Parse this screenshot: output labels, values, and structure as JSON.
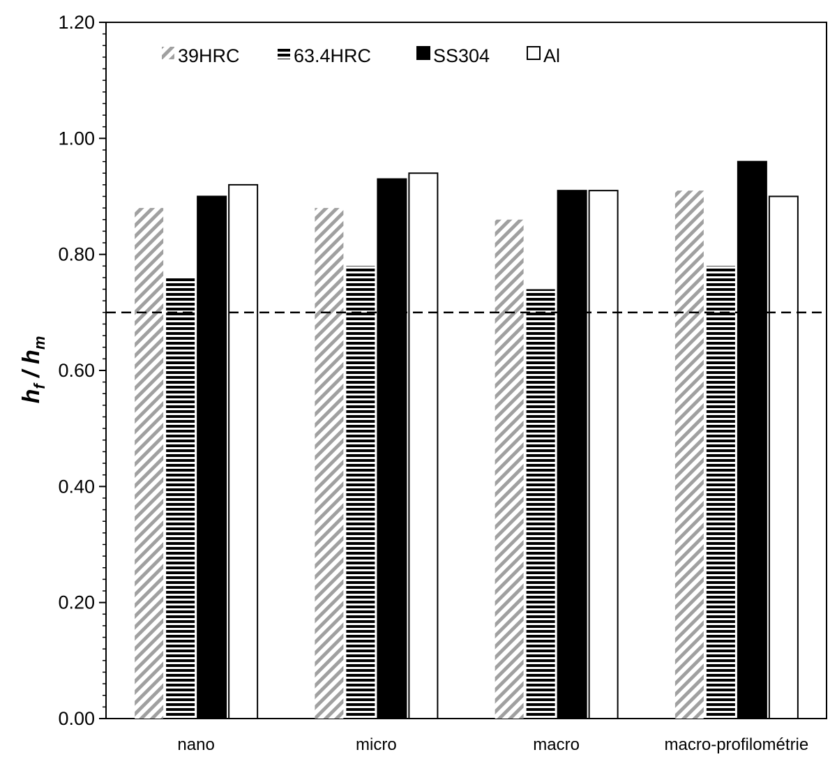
{
  "chart_data": {
    "type": "bar",
    "categories": [
      "nano",
      "micro",
      "macro",
      "macro-profilométrie"
    ],
    "series": [
      {
        "name": "39HRC",
        "values": [
          0.88,
          0.88,
          0.86,
          0.91
        ],
        "pattern": "diagonal",
        "color": "#9a9a9a"
      },
      {
        "name": "63.4HRC",
        "values": [
          0.76,
          0.78,
          0.74,
          0.78
        ],
        "pattern": "horizontal",
        "color": "#000000"
      },
      {
        "name": "SS304",
        "values": [
          0.9,
          0.93,
          0.91,
          0.96
        ],
        "pattern": "solid",
        "color": "#000000"
      },
      {
        "name": "Al",
        "values": [
          0.92,
          0.94,
          0.91,
          0.9
        ],
        "pattern": "empty",
        "color": "#ffffff"
      }
    ],
    "ylabel": "h_f / h_m",
    "ylabel_main_1": "h",
    "ylabel_sub_1": "f",
    "ylabel_sep": " / ",
    "ylabel_main_2": "h",
    "ylabel_sub_2": "m",
    "xlabel": "",
    "ylim": [
      0,
      1.2
    ],
    "yticks": [
      "0.00",
      "0.20",
      "0.40",
      "0.60",
      "0.80",
      "1.00",
      "1.20"
    ],
    "reference_line": {
      "y": 0.7,
      "style": "dashed"
    },
    "legend_position": "top-left",
    "grid": false
  }
}
